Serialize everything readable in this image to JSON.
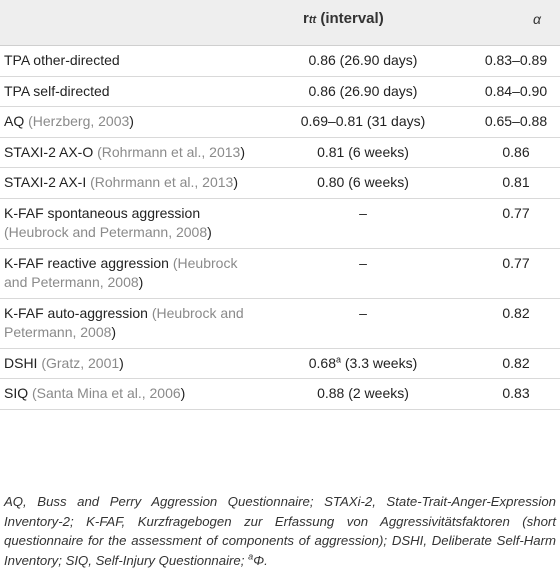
{
  "header": {
    "col2_main": "r",
    "col2_sub": "tt",
    "col2_rest": " (interval)",
    "col3": "α"
  },
  "rows": [
    {
      "name": "TPA other-directed",
      "ref": "",
      "ref_suffix": "",
      "reliability": "0.86 (26.90 days)",
      "sup": "",
      "reliability_rest": "",
      "alpha": "0.83–0.89"
    },
    {
      "name": "TPA self-directed",
      "ref": "",
      "ref_suffix": "",
      "reliability": "0.86 (26.90 days)",
      "sup": "",
      "reliability_rest": "",
      "alpha": "0.84–0.90"
    },
    {
      "name": "AQ ",
      "ref": "(Herzberg, 2003",
      "ref_suffix": ")",
      "reliability": "0.69–0.81 (31 days)",
      "sup": "",
      "reliability_rest": "",
      "alpha": "0.65–0.88"
    },
    {
      "name": "STAXI-2 AX-O ",
      "ref": "(Rohrmann et al., 2013",
      "ref_suffix": ")",
      "reliability": "0.81 (6 weeks)",
      "sup": "",
      "reliability_rest": "",
      "alpha": "0.86"
    },
    {
      "name": "STAXI-2 AX-I ",
      "ref": "(Rohrmann et al., 2013",
      "ref_suffix": ")",
      "reliability": "0.80 (6 weeks)",
      "sup": "",
      "reliability_rest": "",
      "alpha": "0.81"
    },
    {
      "name": "K-FAF spontaneous aggression ",
      "ref": "(Heubrock and Petermann, 2008",
      "ref_suffix": ")",
      "reliability": "–",
      "sup": "",
      "reliability_rest": "",
      "alpha": "0.77"
    },
    {
      "name": "K-FAF reactive aggression ",
      "ref": "(Heubrock and Petermann, 2008",
      "ref_suffix": ")",
      "reliability": "–",
      "sup": "",
      "reliability_rest": "",
      "alpha": "0.77"
    },
    {
      "name": "K-FAF auto-aggression ",
      "ref": "(Heubrock and Petermann, 2008",
      "ref_suffix": ")",
      "reliability": "–",
      "sup": "",
      "reliability_rest": "",
      "alpha": "0.82"
    },
    {
      "name": "DSHI ",
      "ref": "(Gratz, 2001",
      "ref_suffix": ")",
      "reliability": "0.68",
      "sup": "a",
      "reliability_rest": " (3.3 weeks)",
      "alpha": "0.82"
    },
    {
      "name": "SIQ ",
      "ref": "(Santa Mina et al., 2006",
      "ref_suffix": ")",
      "reliability": "0.88 (2 weeks)",
      "sup": "",
      "reliability_rest": "",
      "alpha": "0.83"
    }
  ],
  "footnote": {
    "text": "AQ, Buss and Perry Aggression Questionnaire; STAXi-2, State-Trait-Anger-Expression Inventory-2; K-FAF, Kurzfragebogen zur Erfassung von Aggressivitätsfaktoren (short questionnaire for the assessment of components of aggression); DSHI, Deliberate Self-Harm Inventory; SIQ, Self-Injury Questionnaire; ",
    "sup": "a",
    "tail": "Φ."
  }
}
